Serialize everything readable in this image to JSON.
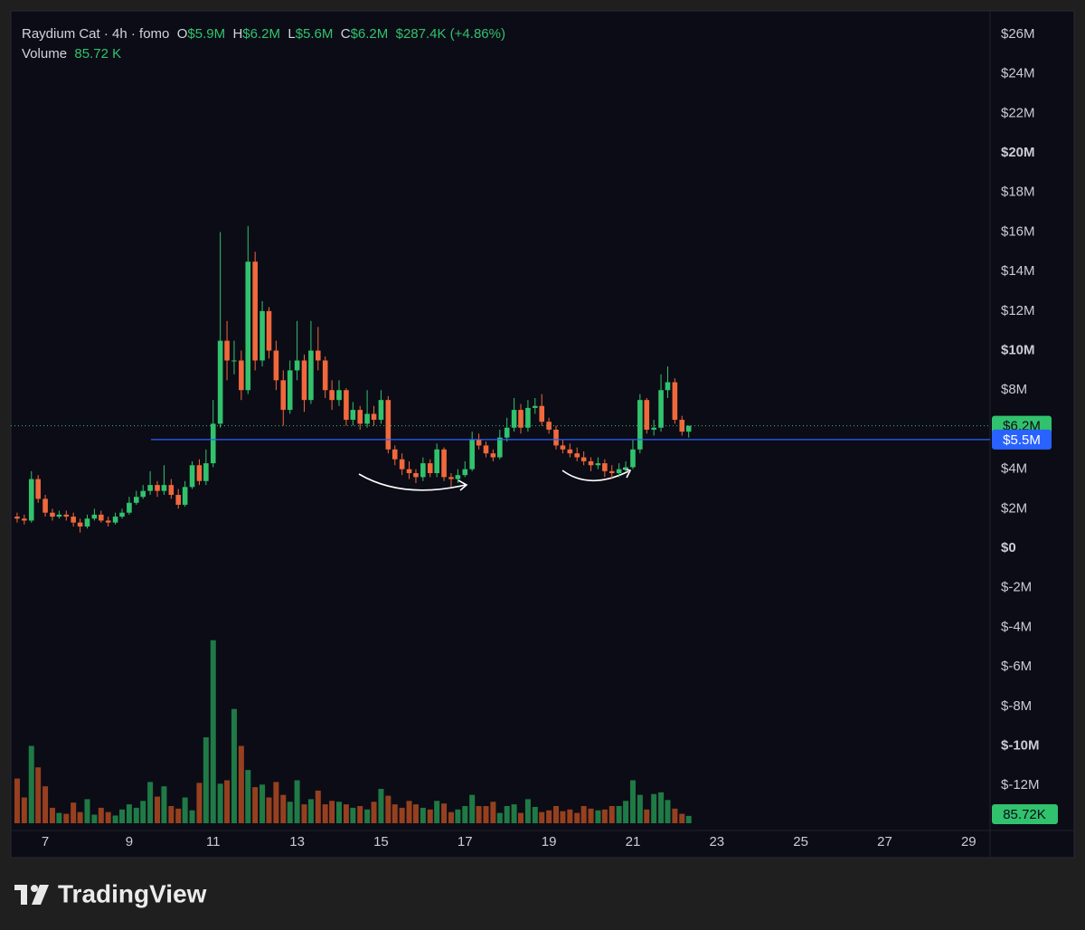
{
  "chart_data": {
    "type": "candlestick",
    "legend": {
      "title": "Raydium Cat · 4h · fomo",
      "o_label": "O",
      "open": "$5.9M",
      "h_label": "H",
      "high": "$6.2M",
      "l_label": "L",
      "low": "$5.6M",
      "c_label": "C",
      "close": "$6.2M",
      "change": "$287.4K (+4.86%)",
      "volume_label": "Volume",
      "volume": "85.72 K"
    },
    "x": [
      6.33,
      6.5,
      6.67,
      6.83,
      7,
      7.17,
      7.33,
      7.5,
      7.67,
      7.83,
      8,
      8.17,
      8.33,
      8.5,
      8.67,
      8.83,
      9,
      9.17,
      9.33,
      9.5,
      9.67,
      9.83,
      10,
      10.17,
      10.33,
      10.5,
      10.67,
      10.83,
      11,
      11.17,
      11.33,
      11.5,
      11.67,
      11.83,
      12,
      12.17,
      12.33,
      12.5,
      12.67,
      12.83,
      13,
      13.17,
      13.33,
      13.5,
      13.67,
      13.83,
      14,
      14.17,
      14.33,
      14.5,
      14.67,
      14.83,
      15,
      15.17,
      15.33,
      15.5,
      15.67,
      15.83,
      16,
      16.17,
      16.33,
      16.5,
      16.67,
      16.83,
      17,
      17.17,
      17.33,
      17.5,
      17.67,
      17.83,
      18,
      18.17,
      18.33,
      18.5,
      18.67,
      18.83,
      19,
      19.17,
      19.33,
      19.5,
      19.67,
      19.83,
      20,
      20.17,
      20.33,
      20.5,
      20.67,
      20.83,
      21,
      21.17,
      21.33,
      21.5,
      21.67,
      21.83,
      22,
      22.17,
      22.33
    ],
    "open": [
      1.6,
      1.5,
      1.4,
      3.5,
      2.5,
      1.8,
      1.6,
      1.7,
      1.6,
      1.3,
      1.1,
      1.5,
      1.7,
      1.4,
      1.3,
      1.6,
      1.8,
      2.3,
      2.6,
      2.9,
      3.2,
      2.9,
      3.2,
      2.7,
      2.2,
      3.1,
      4.2,
      3.4,
      4.3,
      6.3,
      10.5,
      9.5,
      9.5,
      8.0,
      14.5,
      9.5,
      12.0,
      10.0,
      8.5,
      7.0,
      9.0,
      9.5,
      7.5,
      10.0,
      9.5,
      8.0,
      7.5,
      8.0,
      6.5,
      7.0,
      6.3,
      6.8,
      6.5,
      7.5,
      5.0,
      4.5,
      4.0,
      3.8,
      3.6,
      4.3,
      3.8,
      5.0,
      3.6,
      3.5,
      3.7,
      4.0,
      5.5,
      5.2,
      4.8,
      4.6,
      5.6,
      6.1,
      7.0,
      6.1,
      7.1,
      7.2,
      6.4,
      6.0,
      5.2,
      5.0,
      4.8,
      4.6,
      4.4,
      4.2,
      4.3,
      3.9,
      3.8,
      4.0,
      4.1,
      5.0,
      7.5,
      6.0,
      6.1,
      8.0,
      8.4,
      6.5,
      5.9
    ],
    "high": [
      1.8,
      1.7,
      3.9,
      3.7,
      2.7,
      2.0,
      1.9,
      1.9,
      1.8,
      1.5,
      1.7,
      2.0,
      1.9,
      1.6,
      1.8,
      2.0,
      2.6,
      2.9,
      3.2,
      3.9,
      3.4,
      4.2,
      3.5,
      3.0,
      3.4,
      4.4,
      4.5,
      5.0,
      7.5,
      16.0,
      11.5,
      10.5,
      10.0,
      16.3,
      15.0,
      12.5,
      12.2,
      10.5,
      9.0,
      9.5,
      11.5,
      9.8,
      11.5,
      11.2,
      9.7,
      8.5,
      8.5,
      8.1,
      7.4,
      7.2,
      8.0,
      7.2,
      8.0,
      7.7,
      5.2,
      4.8,
      4.4,
      4.0,
      4.6,
      4.5,
      5.3,
      5.1,
      3.8,
      4.0,
      4.4,
      5.9,
      5.8,
      5.4,
      5.0,
      6.0,
      6.6,
      7.6,
      7.3,
      7.5,
      7.6,
      7.8,
      6.6,
      6.2,
      5.5,
      5.3,
      5.1,
      4.9,
      4.6,
      4.6,
      4.5,
      4.2,
      4.3,
      4.4,
      5.5,
      7.8,
      7.6,
      6.5,
      8.8,
      9.2,
      8.6,
      6.7,
      6.2
    ],
    "low": [
      1.3,
      1.2,
      1.3,
      2.3,
      1.6,
      1.4,
      1.5,
      1.4,
      1.1,
      0.8,
      1.0,
      1.4,
      1.3,
      1.1,
      1.2,
      1.5,
      1.7,
      2.2,
      2.5,
      2.7,
      2.6,
      2.7,
      2.5,
      2.0,
      2.1,
      3.0,
      3.2,
      3.2,
      4.1,
      6.1,
      8.5,
      8.8,
      7.5,
      7.8,
      9.0,
      9.2,
      9.6,
      8.0,
      6.2,
      6.8,
      8.5,
      6.9,
      7.3,
      9.0,
      7.6,
      7.0,
      7.2,
      6.2,
      6.2,
      6.0,
      6.1,
      6.2,
      6.3,
      4.8,
      4.2,
      3.7,
      3.5,
      3.3,
      3.4,
      3.6,
      3.6,
      3.4,
      3.1,
      3.3,
      3.6,
      3.9,
      5.0,
      4.6,
      4.4,
      4.5,
      5.4,
      5.9,
      5.8,
      5.9,
      6.8,
      6.2,
      5.8,
      5.0,
      4.8,
      4.6,
      4.4,
      4.2,
      3.9,
      4.0,
      3.6,
      3.5,
      3.6,
      3.9,
      4.0,
      4.8,
      5.8,
      5.7,
      5.9,
      7.6,
      6.3,
      5.7,
      5.6
    ],
    "close": [
      1.5,
      1.4,
      3.5,
      2.5,
      1.8,
      1.6,
      1.7,
      1.6,
      1.3,
      1.1,
      1.5,
      1.7,
      1.4,
      1.3,
      1.6,
      1.8,
      2.3,
      2.6,
      2.9,
      3.2,
      2.9,
      3.2,
      2.7,
      2.2,
      3.1,
      4.2,
      3.4,
      4.3,
      6.3,
      10.5,
      9.5,
      9.5,
      8.0,
      14.5,
      9.5,
      12.0,
      10.0,
      8.5,
      7.0,
      9.0,
      9.5,
      7.5,
      10.0,
      9.5,
      8.0,
      7.5,
      8.0,
      6.5,
      7.0,
      6.3,
      6.8,
      6.5,
      7.5,
      5.0,
      4.5,
      4.0,
      3.8,
      3.6,
      4.3,
      3.8,
      5.0,
      3.6,
      3.5,
      3.7,
      4.0,
      5.5,
      5.2,
      4.8,
      4.6,
      5.6,
      6.1,
      7.0,
      6.1,
      7.1,
      7.2,
      6.4,
      6.0,
      5.2,
      5.0,
      4.8,
      4.6,
      4.4,
      4.2,
      4.3,
      3.9,
      3.8,
      4.0,
      4.1,
      5.0,
      7.5,
      6.0,
      6.1,
      8.0,
      8.4,
      6.5,
      5.9,
      6.2
    ],
    "volume": [
      520,
      300,
      900,
      650,
      430,
      180,
      120,
      110,
      240,
      130,
      280,
      100,
      180,
      130,
      90,
      160,
      220,
      180,
      260,
      480,
      310,
      430,
      200,
      170,
      300,
      150,
      470,
      1000,
      2130,
      460,
      500,
      1330,
      900,
      620,
      420,
      450,
      300,
      480,
      330,
      250,
      500,
      220,
      280,
      380,
      220,
      260,
      250,
      220,
      180,
      200,
      160,
      250,
      400,
      320,
      220,
      180,
      260,
      220,
      180,
      160,
      260,
      230,
      130,
      160,
      200,
      330,
      200,
      200,
      250,
      120,
      200,
      220,
      120,
      280,
      190,
      130,
      150,
      200,
      140,
      160,
      120,
      200,
      170,
      150,
      160,
      200,
      200,
      260,
      500,
      330,
      160,
      340,
      360,
      270,
      170,
      110,
      85.72
    ],
    "volume_last_label": "85.72K",
    "up_color": "#31c26d",
    "down_color": "#f0683c",
    "volume_up_color": "#1f7a46",
    "volume_down_color": "#96401f",
    "xlim": [
      6.18,
      29.51
    ],
    "xticks": [
      7,
      9,
      11,
      13,
      15,
      17,
      19,
      21,
      23,
      25,
      27,
      29
    ],
    "ylim": [
      -14.28,
      27.19
    ],
    "yticks": [
      {
        "value": 26,
        "label": "$26M"
      },
      {
        "value": 24,
        "label": "$24M"
      },
      {
        "value": 22,
        "label": "$22M"
      },
      {
        "value": 20,
        "label": "$20M"
      },
      {
        "value": 18,
        "label": "$18M"
      },
      {
        "value": 16,
        "label": "$16M"
      },
      {
        "value": 14,
        "label": "$14M"
      },
      {
        "value": 12,
        "label": "$12M"
      },
      {
        "value": 10,
        "label": "$10M"
      },
      {
        "value": 8,
        "label": "$8M"
      },
      {
        "value": 6,
        "label": "$6M"
      },
      {
        "value": 4,
        "label": "$4M"
      },
      {
        "value": 2,
        "label": "$2M"
      },
      {
        "value": 0,
        "label": "$0"
      },
      {
        "value": -2,
        "label": "$-2M"
      },
      {
        "value": -4,
        "label": "$-4M"
      },
      {
        "value": -6,
        "label": "$-6M"
      },
      {
        "value": -8,
        "label": "$-8M"
      },
      {
        "value": -10,
        "label": "$-10M"
      },
      {
        "value": -12,
        "label": "$-12M"
      }
    ],
    "volume_ylim": [
      0,
      2400
    ],
    "last_price": {
      "value": 6.2,
      "label": "$6.2M",
      "color": "#31c26d"
    },
    "price_line": {
      "value": 5.5,
      "label": "$5.5M",
      "color": "#2962ff"
    },
    "grid": false
  },
  "brand": "TradingView"
}
